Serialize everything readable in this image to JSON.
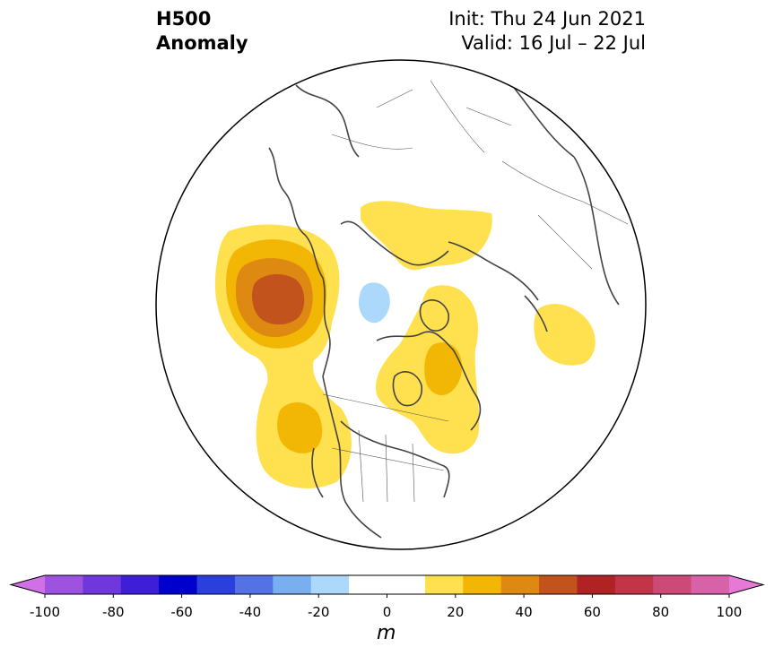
{
  "title": {
    "left_line1": "H500",
    "left_line2": "Anomaly",
    "init": "Init: Thu 24 Jun 2021",
    "valid": "Valid: 16 Jul – 22 Jul"
  },
  "colorbar": {
    "unit": "m",
    "ticks": [
      "-100",
      "-80",
      "-60",
      "-40",
      "-20",
      "0",
      "20",
      "40",
      "60",
      "80",
      "100"
    ],
    "colors": [
      "#d16fe6",
      "#9e52e0",
      "#7038dc",
      "#3e1ed6",
      "#0000cc",
      "#2a3fdc",
      "#5472e6",
      "#7aafef",
      "#acd9fb",
      "#ffffff",
      "#ffffff",
      "#ffe04e",
      "#f2b705",
      "#de8a12",
      "#c2531c",
      "#b02224",
      "#c23548",
      "#cd4a78",
      "#d862a8",
      "#e678d6"
    ]
  },
  "map": {
    "projection": "north-polar-stereographic",
    "anomaly_regions": [
      {
        "region": "Gulf of Alaska / NE Pacific",
        "level": "40-50 m"
      },
      {
        "region": "Pacific Northwest US",
        "level": "20-30 m"
      },
      {
        "region": "Hudson Bay / NE Canada",
        "level": "20-30 m"
      },
      {
        "region": "Scandinavia / Arctic",
        "level": "10-20 m"
      },
      {
        "region": "Central Asia",
        "level": "10-20 m"
      },
      {
        "region": "Siberian Arctic",
        "level": "-20 to -10 m"
      }
    ]
  }
}
